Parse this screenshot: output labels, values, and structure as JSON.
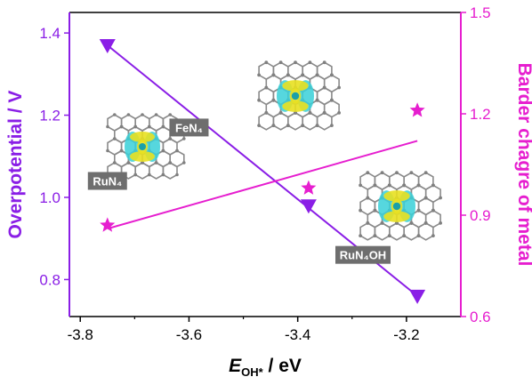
{
  "chart_data": {
    "type": "scatter",
    "title": "",
    "x_axis": {
      "label_main": "E",
      "label_sub": "OH*",
      "label_unit": " / eV",
      "range": [
        -3.82,
        -3.1
      ],
      "ticks": [
        -3.8,
        -3.6,
        -3.4,
        -3.2
      ],
      "tick_labels": [
        "-3.8",
        "-3.6",
        "-3.4",
        "-3.2"
      ]
    },
    "y_left": {
      "label": "Overpotential / V",
      "range": [
        0.71,
        1.45
      ],
      "ticks": [
        0.8,
        1.0,
        1.2,
        1.4
      ],
      "tick_labels": [
        "0.8",
        "1.0",
        "1.2",
        "1.4"
      ],
      "color": "#8a1ee6"
    },
    "y_right": {
      "label": "Barder chagre of metal",
      "range": [
        0.6,
        1.5
      ],
      "ticks": [
        0.6,
        0.9,
        1.2,
        1.5
      ],
      "tick_labels": [
        "0.6",
        "0.9",
        "1.2",
        "1.5"
      ],
      "color": "#e61ecf"
    },
    "series": [
      {
        "axis": "left",
        "marker": "triangle-down",
        "color": "#8a1ee6",
        "x": [
          -3.75,
          -3.38,
          -3.18
        ],
        "y": [
          1.37,
          0.98,
          0.76
        ],
        "fit_line": [
          [
            -3.75,
            1.37
          ],
          [
            -3.18,
            0.76
          ]
        ]
      },
      {
        "axis": "right",
        "marker": "star",
        "color": "#e61ecf",
        "x": [
          -3.75,
          -3.38,
          -3.18
        ],
        "y": [
          0.87,
          0.98,
          1.21
        ],
        "fit_line": [
          [
            -3.75,
            0.86
          ],
          [
            -3.18,
            1.12
          ]
        ]
      }
    ],
    "structure_labels": [
      {
        "text": "FeN₄",
        "x": -3.6,
        "y": 1.17
      },
      {
        "text": "RuN₄",
        "x": -3.75,
        "y": 1.04
      },
      {
        "text": "RuN₄OH",
        "x": -3.28,
        "y": 0.86
      }
    ]
  }
}
